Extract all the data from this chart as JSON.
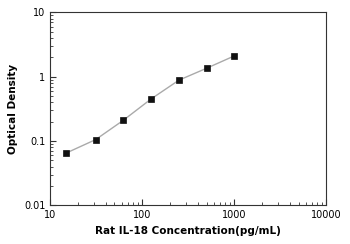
{
  "x_values": [
    15,
    31.25,
    62.5,
    125,
    250,
    500,
    1000
  ],
  "y_values": [
    0.065,
    0.105,
    0.21,
    0.45,
    0.88,
    1.35,
    2.1
  ],
  "xlim": [
    10,
    10000
  ],
  "ylim": [
    0.01,
    10
  ],
  "xlabel": "Rat IL-18 Concentration(pg/mL)",
  "ylabel": "Optical Density",
  "line_color": "#aaaaaa",
  "marker_color": "#111111",
  "marker": "s",
  "marker_size": 4.5,
  "line_width": 1.0,
  "background_color": "#ffffff",
  "x_ticks": [
    10,
    100,
    1000,
    10000
  ],
  "x_tick_labels": [
    "10",
    "100",
    "1000",
    "10000"
  ],
  "y_ticks": [
    0.01,
    0.1,
    1,
    10
  ],
  "y_tick_labels": [
    "0.01",
    "0.1",
    "1",
    "10"
  ]
}
